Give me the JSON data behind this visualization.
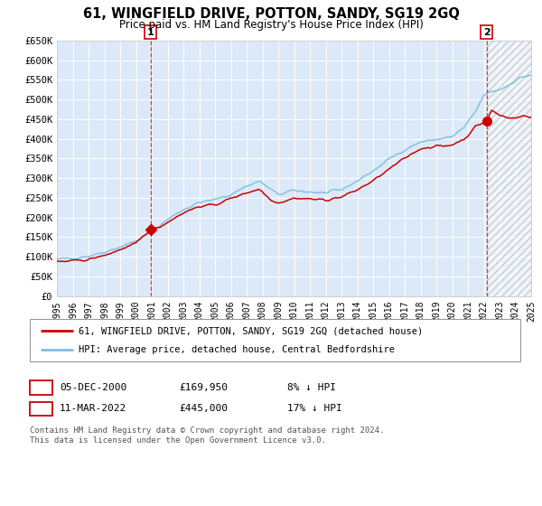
{
  "title_line1": "61, WINGFIELD DRIVE, POTTON, SANDY, SG19 2GQ",
  "title_line2": "Price paid vs. HM Land Registry's House Price Index (HPI)",
  "ylim": [
    0,
    650000
  ],
  "yticks": [
    0,
    50000,
    100000,
    150000,
    200000,
    250000,
    300000,
    350000,
    400000,
    450000,
    500000,
    550000,
    600000,
    650000
  ],
  "ytick_labels": [
    "£0",
    "£50K",
    "£100K",
    "£150K",
    "£200K",
    "£250K",
    "£300K",
    "£350K",
    "£400K",
    "£450K",
    "£500K",
    "£550K",
    "£600K",
    "£650K"
  ],
  "plot_bg": "#dce9f8",
  "grid_color": "#ffffff",
  "hpi_line_color": "#7fbfdf",
  "price_line_color": "#cc0000",
  "marker_color": "#cc0000",
  "vline_color": "#cc0000",
  "marker1_x": 2000.92,
  "marker1_y": 169950,
  "marker2_x": 2022.19,
  "marker2_y": 445000,
  "legend_label1": "61, WINGFIELD DRIVE, POTTON, SANDY, SG19 2GQ (detached house)",
  "legend_label2": "HPI: Average price, detached house, Central Bedfordshire",
  "table_row1": [
    "1",
    "05-DEC-2000",
    "£169,950",
    "8% ↓ HPI"
  ],
  "table_row2": [
    "2",
    "11-MAR-2022",
    "£445,000",
    "17% ↓ HPI"
  ],
  "footnote1": "Contains HM Land Registry data © Crown copyright and database right 2024.",
  "footnote2": "This data is licensed under the Open Government Licence v3.0.",
  "xmin": 1995,
  "xmax": 2025,
  "hpi_anchors": [
    [
      1995.0,
      93000
    ],
    [
      1996.0,
      97000
    ],
    [
      1997.0,
      102000
    ],
    [
      1998.0,
      112000
    ],
    [
      1999.0,
      125000
    ],
    [
      2000.0,
      140000
    ],
    [
      2001.0,
      163000
    ],
    [
      2002.0,
      195000
    ],
    [
      2003.0,
      220000
    ],
    [
      2004.0,
      238000
    ],
    [
      2005.0,
      245000
    ],
    [
      2006.0,
      258000
    ],
    [
      2007.0,
      280000
    ],
    [
      2007.8,
      292000
    ],
    [
      2008.5,
      272000
    ],
    [
      2009.0,
      258000
    ],
    [
      2010.0,
      268000
    ],
    [
      2011.0,
      265000
    ],
    [
      2012.0,
      262000
    ],
    [
      2013.0,
      270000
    ],
    [
      2014.0,
      293000
    ],
    [
      2015.0,
      318000
    ],
    [
      2016.0,
      348000
    ],
    [
      2016.8,
      368000
    ],
    [
      2017.5,
      382000
    ],
    [
      2018.0,
      392000
    ],
    [
      2019.0,
      398000
    ],
    [
      2020.0,
      405000
    ],
    [
      2020.8,
      430000
    ],
    [
      2021.5,
      470000
    ],
    [
      2022.0,
      510000
    ],
    [
      2022.5,
      520000
    ],
    [
      2023.0,
      525000
    ],
    [
      2023.5,
      535000
    ],
    [
      2024.0,
      548000
    ],
    [
      2024.5,
      558000
    ],
    [
      2025.0,
      562000
    ]
  ],
  "price_anchors": [
    [
      1995.0,
      87000
    ],
    [
      1996.0,
      89000
    ],
    [
      1997.0,
      93000
    ],
    [
      1998.0,
      103000
    ],
    [
      1999.0,
      118000
    ],
    [
      2000.0,
      133000
    ],
    [
      2000.92,
      169950
    ],
    [
      2001.5,
      176000
    ],
    [
      2002.0,
      188000
    ],
    [
      2003.0,
      212000
    ],
    [
      2004.0,
      228000
    ],
    [
      2005.0,
      232000
    ],
    [
      2006.0,
      248000
    ],
    [
      2007.0,
      263000
    ],
    [
      2007.8,
      272000
    ],
    [
      2008.5,
      246000
    ],
    [
      2009.0,
      237000
    ],
    [
      2010.0,
      249000
    ],
    [
      2011.0,
      247000
    ],
    [
      2012.0,
      244000
    ],
    [
      2013.0,
      252000
    ],
    [
      2014.0,
      270000
    ],
    [
      2015.0,
      293000
    ],
    [
      2016.0,
      322000
    ],
    [
      2016.8,
      345000
    ],
    [
      2017.5,
      363000
    ],
    [
      2018.0,
      375000
    ],
    [
      2018.5,
      378000
    ],
    [
      2019.0,
      382000
    ],
    [
      2019.5,
      380000
    ],
    [
      2020.0,
      385000
    ],
    [
      2020.8,
      400000
    ],
    [
      2021.5,
      432000
    ],
    [
      2022.19,
      445000
    ],
    [
      2022.5,
      472000
    ],
    [
      2022.8,
      465000
    ],
    [
      2023.0,
      460000
    ],
    [
      2023.5,
      455000
    ],
    [
      2024.0,
      452000
    ],
    [
      2024.5,
      458000
    ],
    [
      2025.0,
      455000
    ]
  ]
}
